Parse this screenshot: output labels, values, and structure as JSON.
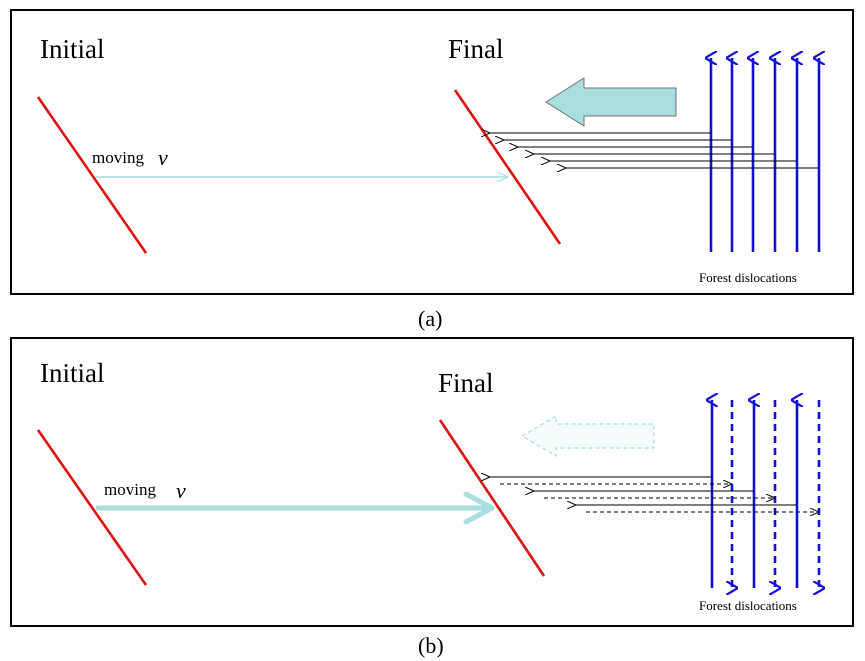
{
  "panel_a": {
    "label_initial": "Initial",
    "label_final": "Final",
    "moving_text": "moving",
    "velocity_symbol": "v",
    "forest_label": "Forest dislocations",
    "caption": "(a)"
  },
  "panel_b": {
    "label_initial": "Initial",
    "label_final": "Final",
    "moving_text": "moving",
    "velocity_symbol": "v",
    "forest_label": "Forest dislocations",
    "caption": "(b)"
  },
  "colors": {
    "dislocation_line": "#e01010",
    "forest_line": "#1010d8",
    "motion_arrow": "#a8dede",
    "interaction_arrow": "#000000",
    "frame": "#000000"
  }
}
